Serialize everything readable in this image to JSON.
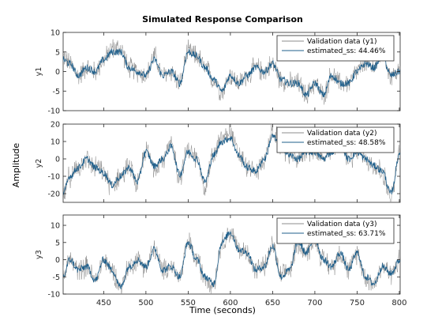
{
  "chart_data": {
    "type": "line",
    "title": "Simulated Response Comparison",
    "xlabel": "Time (seconds)",
    "ylabel": "Amplitude",
    "xlim": [
      402,
      801
    ],
    "x_ticks": [
      450,
      500,
      550,
      600,
      650,
      700,
      750,
      800
    ],
    "grid": false,
    "colors": {
      "validation": "#8c8c8c",
      "estimated": "#1f5f8b"
    },
    "subplots": [
      {
        "ylabel": "y1",
        "ylim": [
          -10,
          10
        ],
        "y_ticks": [
          10,
          5,
          0,
          -5,
          -10
        ],
        "legend_position": "top-right",
        "series": [
          {
            "name": "Validation data (y1)",
            "role": "validation",
            "x": [
              402,
              410,
              420,
              430,
              440,
              450,
              460,
              470,
              480,
              490,
              500,
              510,
              520,
              530,
              540,
              550,
              560,
              570,
              580,
              590,
              600,
              610,
              620,
              630,
              640,
              650,
              660,
              670,
              680,
              690,
              700,
              710,
              720,
              730,
              740,
              750,
              760,
              770,
              780,
              790,
              801
            ],
            "y": [
              4,
              2,
              -1,
              1,
              0,
              3,
              6,
              6,
              1,
              0,
              -1,
              4,
              -1,
              0,
              -3,
              5,
              4,
              1,
              -2,
              -5,
              -1,
              -3,
              -1,
              1,
              0,
              2,
              -2,
              -3,
              -3,
              -6,
              -3,
              -6,
              -1,
              -3,
              -3,
              0,
              2,
              1,
              5,
              -1,
              0
            ]
          },
          {
            "name": "estimated_ss: 44.46%",
            "role": "estimated",
            "x": [
              402,
              410,
              420,
              430,
              440,
              450,
              460,
              470,
              480,
              490,
              500,
              510,
              520,
              530,
              540,
              550,
              560,
              570,
              580,
              590,
              600,
              610,
              620,
              630,
              640,
              650,
              660,
              670,
              680,
              690,
              700,
              710,
              720,
              730,
              740,
              750,
              760,
              770,
              780,
              790,
              801
            ],
            "y": [
              3,
              2,
              -1,
              1,
              0,
              3,
              5,
              5,
              1,
              0,
              -1,
              3,
              -1,
              0,
              -3,
              5,
              4,
              1,
              -2,
              -5,
              -1,
              -3,
              -1,
              1,
              0,
              2,
              -2,
              -3,
              -3,
              -6,
              -3,
              -6,
              -1,
              -3,
              -3,
              0,
              2,
              1,
              4,
              -1,
              0
            ]
          }
        ]
      },
      {
        "ylabel": "y2",
        "ylim": [
          -25,
          20
        ],
        "y_ticks": [
          20,
          10,
          0,
          -10,
          -20
        ],
        "legend_position": "top-right",
        "series": [
          {
            "name": "Validation data (y2)",
            "role": "validation",
            "x": [
              402,
              410,
              420,
              430,
              440,
              450,
              460,
              470,
              480,
              490,
              500,
              510,
              520,
              530,
              540,
              550,
              560,
              570,
              580,
              590,
              600,
              610,
              620,
              630,
              640,
              650,
              660,
              670,
              680,
              690,
              700,
              710,
              720,
              730,
              740,
              750,
              760,
              770,
              780,
              790,
              801
            ],
            "y": [
              -22,
              -10,
              -5,
              0,
              -5,
              -8,
              -16,
              -10,
              -5,
              -15,
              5,
              -5,
              0,
              8,
              -10,
              5,
              0,
              -15,
              2,
              12,
              15,
              2,
              -5,
              -8,
              0,
              15,
              8,
              2,
              0,
              5,
              5,
              0,
              5,
              10,
              0,
              5,
              0,
              -5,
              -8,
              -22,
              5
            ]
          },
          {
            "name": "estimated_ss: 48.58%",
            "role": "estimated",
            "x": [
              402,
              410,
              420,
              430,
              440,
              450,
              460,
              470,
              480,
              490,
              500,
              510,
              520,
              530,
              540,
              550,
              560,
              570,
              580,
              590,
              600,
              610,
              620,
              630,
              640,
              650,
              660,
              670,
              680,
              690,
              700,
              710,
              720,
              730,
              740,
              750,
              760,
              770,
              780,
              790,
              801
            ],
            "y": [
              -20,
              -10,
              -5,
              0,
              -5,
              -8,
              -15,
              -10,
              -5,
              -13,
              4,
              -4,
              0,
              7,
              -9,
              4,
              0,
              -13,
              2,
              10,
              12,
              2,
              -5,
              -7,
              0,
              13,
              7,
              2,
              0,
              4,
              4,
              0,
              4,
              8,
              0,
              4,
              0,
              -4,
              -7,
              -20,
              4
            ]
          }
        ]
      },
      {
        "ylabel": "y3",
        "ylim": [
          -10,
          13
        ],
        "y_ticks": [
          10,
          5,
          0,
          -5,
          -10
        ],
        "legend_position": "top-right",
        "series": [
          {
            "name": "Validation data (y3)",
            "role": "validation",
            "x": [
              402,
              410,
              420,
              430,
              440,
              450,
              460,
              470,
              480,
              490,
              500,
              510,
              520,
              530,
              540,
              550,
              560,
              570,
              580,
              590,
              600,
              610,
              620,
              630,
              640,
              650,
              660,
              670,
              680,
              690,
              700,
              710,
              720,
              730,
              740,
              750,
              760,
              770,
              780,
              790,
              801
            ],
            "y": [
              -5,
              0,
              -3,
              -2,
              -6,
              0,
              -3,
              -8,
              -2,
              0,
              -2,
              3,
              -3,
              -2,
              -5,
              5,
              0,
              -5,
              -7,
              5,
              8,
              3,
              2,
              -3,
              -2,
              4,
              -5,
              -3,
              5,
              2,
              6,
              0,
              -2,
              2,
              -3,
              2,
              -5,
              -7,
              -2,
              -4,
              0
            ]
          },
          {
            "name": "estimated_ss: 63.71%",
            "role": "estimated",
            "x": [
              402,
              410,
              420,
              430,
              440,
              450,
              460,
              470,
              480,
              490,
              500,
              510,
              520,
              530,
              540,
              550,
              560,
              570,
              580,
              590,
              600,
              610,
              620,
              630,
              640,
              650,
              660,
              670,
              680,
              690,
              700,
              710,
              720,
              730,
              740,
              750,
              760,
              770,
              780,
              790,
              801
            ],
            "y": [
              -5,
              0,
              -3,
              -2,
              -6,
              0,
              -3,
              -8,
              -2,
              0,
              -2,
              3,
              -3,
              -2,
              -5,
              5,
              0,
              -5,
              -7,
              5,
              8,
              3,
              2,
              -3,
              -2,
              4,
              -5,
              -3,
              5,
              2,
              6,
              0,
              -2,
              2,
              -3,
              2,
              -5,
              -7,
              -2,
              -4,
              0
            ]
          }
        ]
      }
    ]
  }
}
